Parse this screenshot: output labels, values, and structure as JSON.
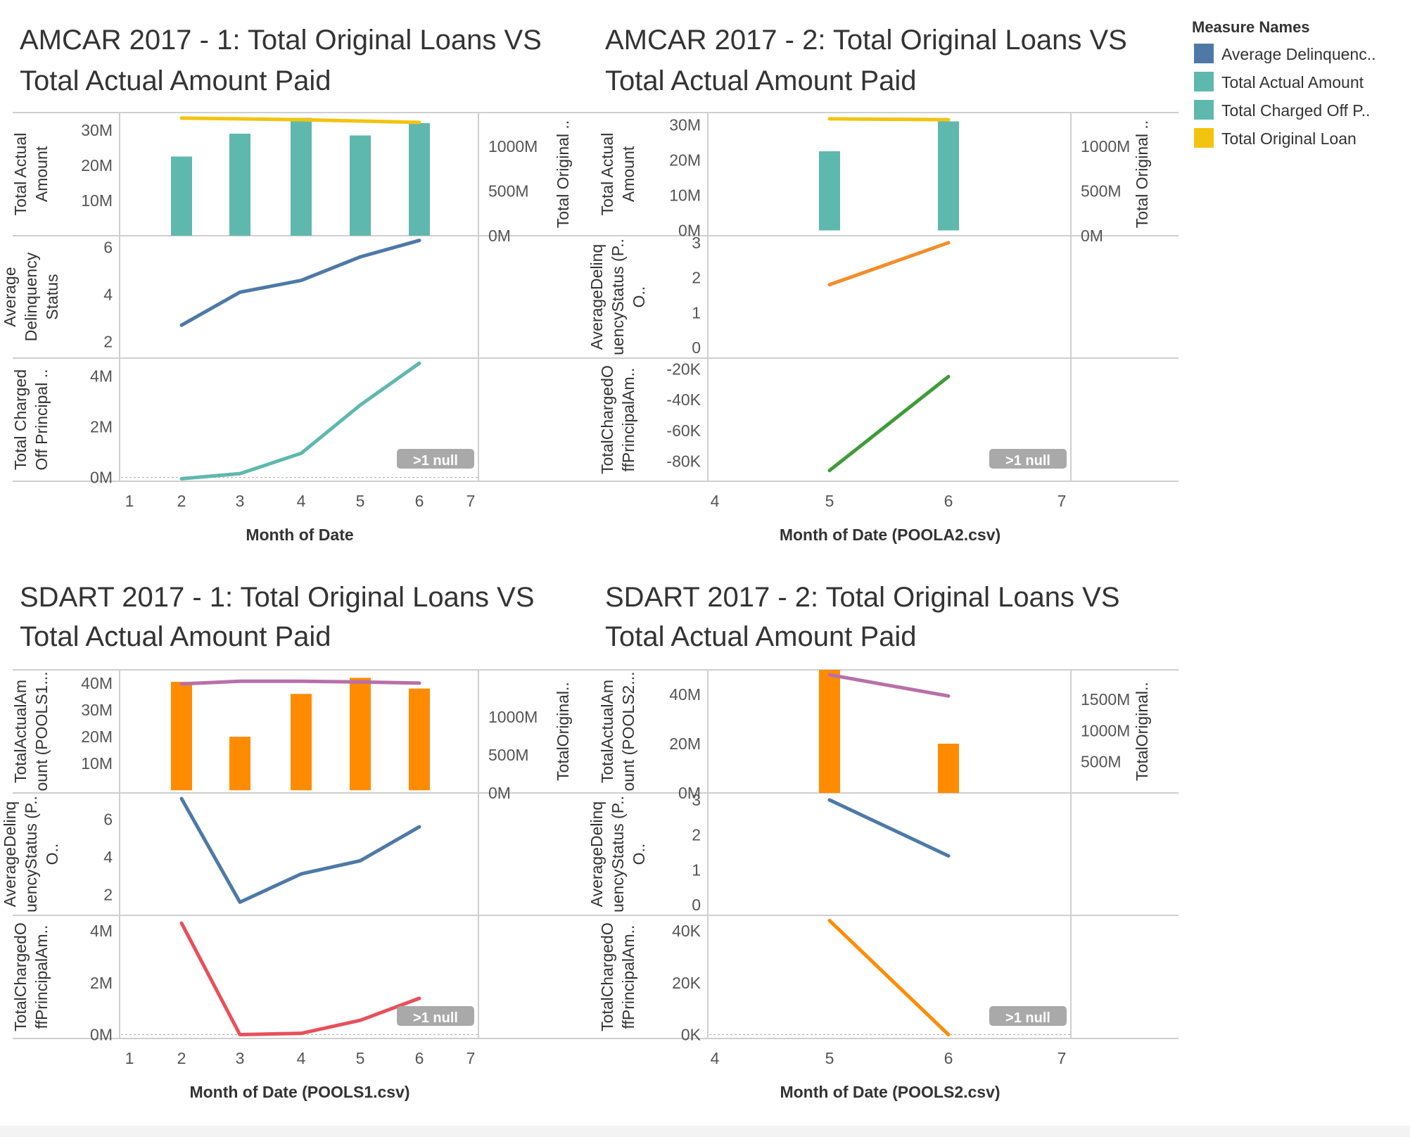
{
  "legend": {
    "title": "Measure Names",
    "items": [
      {
        "label": "Average Delinquenc..",
        "color": "#4e79a7"
      },
      {
        "label": "Total Actual Amount",
        "color": "#5fb8ad"
      },
      {
        "label": "Total Charged Off P..",
        "color": "#5fb8ad"
      },
      {
        "label": "Total Original Loan",
        "color": "#f2c40f"
      }
    ]
  },
  "null_badge": ">1 null",
  "chart_data": [
    {
      "type": "bar+line",
      "title": [
        "AMCAR 2017 - 1: Total Original Loans VS",
        "Total Actual Amount Paid"
      ],
      "xlabel": "Month of Date",
      "x_ticks": [
        "1",
        "2",
        "3",
        "4",
        "5",
        "6",
        "7"
      ],
      "x_range": [
        1,
        7
      ],
      "x": [
        2,
        3,
        4,
        5,
        6
      ],
      "null_badge": true,
      "panes": [
        {
          "ylabel": [
            "Total Actual",
            "Amount"
          ],
          "ylabel_right": "Total Original ..",
          "ylim": [
            0,
            35
          ],
          "y_ticks": [
            {
              "v": 10,
              "label": "10M"
            },
            {
              "v": 20,
              "label": "20M"
            },
            {
              "v": 30,
              "label": "30M"
            }
          ],
          "y2lim": [
            0,
            1380
          ],
          "y2_ticks": [
            {
              "v": 0,
              "label": "0M"
            },
            {
              "v": 500,
              "label": "500M"
            },
            {
              "v": 1000,
              "label": "1000M"
            }
          ],
          "bars": {
            "name": "Total Actual Amount",
            "color": "#5fb8ad",
            "values": [
              22.5,
              29,
              33.5,
              28.5,
              32
            ]
          },
          "line": {
            "name": "Total Original Loan",
            "color": "#f2c40f",
            "values": [
              1318,
              1310,
              1300,
              1285,
              1270
            ]
          }
        },
        {
          "ylabel": [
            "Average",
            "Delinquency",
            "Status"
          ],
          "ylim": [
            1.3,
            6.5
          ],
          "y_ticks": [
            {
              "v": 2,
              "label": "2"
            },
            {
              "v": 4,
              "label": "4"
            },
            {
              "v": 6,
              "label": "6"
            }
          ],
          "line": {
            "name": "Average Delinquency Status",
            "color": "#4e79a7",
            "values": [
              2.7,
              4.1,
              4.6,
              5.6,
              6.3
            ]
          }
        },
        {
          "ylabel": [
            "Total Charged",
            "Off Principal .."
          ],
          "ylim": [
            -0.15,
            4.7
          ],
          "y_ticks": [
            {
              "v": 0,
              "label": "0M"
            },
            {
              "v": 2,
              "label": "2M"
            },
            {
              "v": 4,
              "label": "4M"
            }
          ],
          "zero_line": true,
          "line": {
            "name": "Total Charged Off Principal",
            "color": "#5fb8ad",
            "values": [
              -0.05,
              0.15,
              0.95,
              2.85,
              4.5
            ]
          }
        }
      ]
    },
    {
      "type": "bar+line",
      "title": [
        "AMCAR 2017 - 2: Total Original Loans VS",
        "Total Actual Amount Paid"
      ],
      "xlabel": "Month of Date (POOLA2.csv)",
      "x_ticks": [
        "4",
        "5",
        "6",
        "7"
      ],
      "x_range": [
        4,
        7
      ],
      "x": [
        5,
        6
      ],
      "null_badge": true,
      "panes": [
        {
          "ylabel": [
            "Total Actual",
            "Amount"
          ],
          "ylabel_right": "Total Original ..",
          "ylim": [
            -1.5,
            33.5
          ],
          "y_ticks": [
            {
              "v": 0,
              "label": "0M"
            },
            {
              "v": 10,
              "label": "10M"
            },
            {
              "v": 20,
              "label": "20M"
            },
            {
              "v": 30,
              "label": "30M"
            }
          ],
          "y2lim": [
            0,
            1380
          ],
          "y2_ticks": [
            {
              "v": 0,
              "label": "0M"
            },
            {
              "v": 500,
              "label": "500M"
            },
            {
              "v": 1000,
              "label": "1000M"
            }
          ],
          "bars": {
            "name": "Total Actual Amount",
            "color": "#5fb8ad",
            "values": [
              22.5,
              31
            ]
          },
          "line": {
            "name": "Total Original Loan",
            "color": "#f2c40f",
            "values": [
              1310,
              1300
            ]
          }
        },
        {
          "ylabel": [
            "AverageDelinq",
            "uencyStatus (P..",
            "O.."
          ],
          "ylim": [
            -0.3,
            3.2
          ],
          "y_ticks": [
            {
              "v": 0,
              "label": "0"
            },
            {
              "v": 1,
              "label": "1"
            },
            {
              "v": 2,
              "label": "2"
            },
            {
              "v": 3,
              "label": "3"
            }
          ],
          "line": {
            "name": "Average Delinquency Status",
            "color": "#f28e2b",
            "values": [
              1.8,
              3.0
            ]
          }
        },
        {
          "ylabel": [
            "TotalChargedO",
            "ffPrincipalAm.."
          ],
          "ylim": [
            -93,
            -13
          ],
          "y_ticks": [
            {
              "v": -80,
              "label": "-80K"
            },
            {
              "v": -60,
              "label": "-60K"
            },
            {
              "v": -40,
              "label": "-40K"
            },
            {
              "v": -20,
              "label": "-20K"
            }
          ],
          "line": {
            "name": "Total Charged Off Principal",
            "color": "#3e9b3a",
            "values": [
              -86,
              -25
            ]
          }
        }
      ]
    },
    {
      "type": "bar+line",
      "title": [
        "SDART 2017 - 1: Total Original Loans VS",
        "Total Actual Amount Paid"
      ],
      "xlabel": "Month of Date (POOLS1.csv)",
      "x_ticks": [
        "1",
        "2",
        "3",
        "4",
        "5",
        "6",
        "7"
      ],
      "x_range": [
        1,
        7
      ],
      "x": [
        2,
        3,
        4,
        5,
        6
      ],
      "null_badge": true,
      "panes": [
        {
          "ylabel": [
            "TotalActualAm",
            "ount (POOLS1..."
          ],
          "ylabel_right": "TotalOriginal..",
          "ylim": [
            -1,
            45
          ],
          "y_ticks": [
            {
              "v": 10,
              "label": "10M"
            },
            {
              "v": 20,
              "label": "20M"
            },
            {
              "v": 30,
              "label": "30M"
            },
            {
              "v": 40,
              "label": "40M"
            }
          ],
          "y2lim": [
            0,
            1620
          ],
          "y2_ticks": [
            {
              "v": 0,
              "label": "0M"
            },
            {
              "v": 500,
              "label": "500M"
            },
            {
              "v": 1000,
              "label": "1000M"
            }
          ],
          "bars": {
            "name": "Total Actual Amount",
            "color": "#ff8c00",
            "values": [
              40.5,
              20,
              36,
              42,
              38
            ]
          },
          "line": {
            "name": "Total Original Loan",
            "color": "#b870a8",
            "values": [
              1435,
              1470,
              1470,
              1460,
              1445
            ]
          }
        },
        {
          "ylabel": [
            "AverageDelinq",
            "uencyStatus (P..",
            "O.."
          ],
          "ylim": [
            0.9,
            7.4
          ],
          "y_ticks": [
            {
              "v": 2,
              "label": "2"
            },
            {
              "v": 4,
              "label": "4"
            },
            {
              "v": 6,
              "label": "6"
            }
          ],
          "line": {
            "name": "Average Delinquency Status",
            "color": "#4e79a7",
            "values": [
              7.1,
              1.6,
              3.1,
              3.8,
              5.6
            ]
          }
        },
        {
          "ylabel": [
            "TotalChargedO",
            "ffPrincipalAm.."
          ],
          "ylim": [
            -0.15,
            4.6
          ],
          "y_ticks": [
            {
              "v": 0,
              "label": "0M"
            },
            {
              "v": 2,
              "label": "2M"
            },
            {
              "v": 4,
              "label": "4M"
            }
          ],
          "zero_line": true,
          "line": {
            "name": "Total Charged Off Principal",
            "color": "#e8505b",
            "values": [
              4.3,
              0.0,
              0.05,
              0.55,
              1.4
            ]
          }
        }
      ]
    },
    {
      "type": "bar+line",
      "title": [
        "SDART 2017 - 2: Total Original Loans VS",
        "Total Actual Amount Paid"
      ],
      "xlabel": "Month of Date (POOLS2.csv)",
      "x_ticks": [
        "4",
        "5",
        "6",
        "7"
      ],
      "x_range": [
        4,
        7
      ],
      "x": [
        5,
        6
      ],
      "null_badge": true,
      "panes": [
        {
          "ylabel": [
            "TotalActualAm",
            "ount (POOLS2..."
          ],
          "ylabel_right": "TotalOriginal..",
          "ylim": [
            0,
            50
          ],
          "y_ticks": [
            {
              "v": 0,
              "label": "0M"
            },
            {
              "v": 20,
              "label": "20M"
            },
            {
              "v": 40,
              "label": "40M"
            }
          ],
          "y2lim": [
            0,
            1975
          ],
          "y2_ticks": [
            {
              "v": 500,
              "label": "500M"
            },
            {
              "v": 1000,
              "label": "1000M"
            },
            {
              "v": 1500,
              "label": "1500M"
            }
          ],
          "bars": {
            "name": "Total Actual Amount",
            "color": "#ff8c00",
            "values": [
              50,
              20
            ]
          },
          "line": {
            "name": "Total Original Loan",
            "color": "#b870a8",
            "values": [
              1895,
              1555
            ]
          }
        },
        {
          "ylabel": [
            "AverageDelinq",
            "uencyStatus (P..",
            "O.."
          ],
          "ylim": [
            -0.3,
            3.2
          ],
          "y_ticks": [
            {
              "v": 0,
              "label": "0"
            },
            {
              "v": 1,
              "label": "1"
            },
            {
              "v": 2,
              "label": "2"
            },
            {
              "v": 3,
              "label": "3"
            }
          ],
          "line": {
            "name": "Average Delinquency Status",
            "color": "#4e79a7",
            "values": [
              3.0,
              1.4
            ]
          }
        },
        {
          "ylabel": [
            "TotalChargedO",
            "ffPrincipalAm.."
          ],
          "ylim": [
            -1.5,
            46
          ],
          "y_ticks": [
            {
              "v": 0,
              "label": "0K"
            },
            {
              "v": 20,
              "label": "20K"
            },
            {
              "v": 40,
              "label": "40K"
            }
          ],
          "zero_line": true,
          "line": {
            "name": "Total Charged Off Principal",
            "color": "#ff8c00",
            "values": [
              44,
              0
            ]
          }
        }
      ]
    }
  ]
}
